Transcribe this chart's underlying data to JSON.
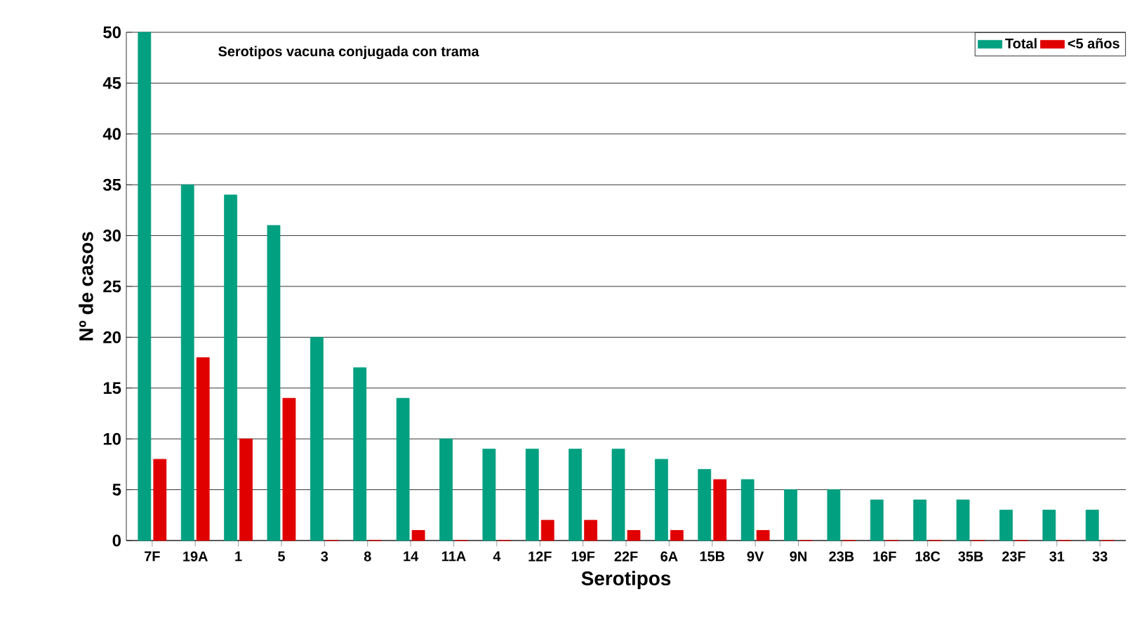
{
  "chart_data": {
    "type": "bar",
    "xlabel": "Serotipos",
    "ylabel": "Nº de casos",
    "annotations": [
      "Serotipos vacuna conjugada con trama"
    ],
    "categories": [
      "7F",
      "19A",
      "1",
      "5",
      "3",
      "8",
      "14",
      "11A",
      "4",
      "12F",
      "19F",
      "22F",
      "6A",
      "15B",
      "9V",
      "9N",
      "23B",
      "16F",
      "18C",
      "35B",
      "23F",
      "31",
      "33"
    ],
    "series": [
      {
        "name": "Total",
        "color": "#00a080",
        "values": [
          50,
          35,
          34,
          31,
          20,
          17,
          14,
          10,
          9,
          9,
          9,
          9,
          8,
          7,
          6,
          5,
          5,
          4,
          4,
          4,
          3,
          3,
          3
        ]
      },
      {
        "name": "<5 años",
        "color": "#e00000",
        "values": [
          8,
          18,
          10,
          14,
          0,
          0,
          1,
          0,
          0,
          2,
          2,
          1,
          1,
          6,
          1,
          0,
          0,
          0,
          0,
          0,
          0,
          0,
          0
        ]
      }
    ],
    "ylim": [
      0,
      50
    ],
    "yticks": [
      0,
      5,
      10,
      15,
      20,
      25,
      30,
      35,
      40,
      45,
      50
    ],
    "grid": "y",
    "legend": "top right"
  }
}
